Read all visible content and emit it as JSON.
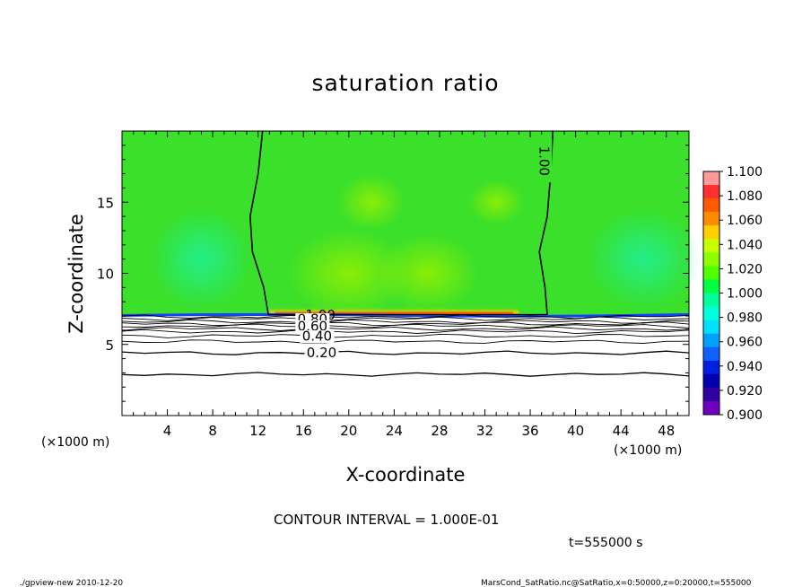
{
  "chart_data": {
    "type": "heatmap",
    "title": "saturation ratio",
    "xlabel": "X-coordinate",
    "ylabel": "Z-coordinate",
    "x_unit_left": "(×1000 m)",
    "x_unit_right": "(×1000 m)",
    "xlim": [
      0,
      50
    ],
    "ylim": [
      0,
      20
    ],
    "xticks": [
      "4",
      "8",
      "12",
      "16",
      "20",
      "24",
      "28",
      "32",
      "36",
      "40",
      "44",
      "48"
    ],
    "yticks": [
      "5",
      "10",
      "15"
    ],
    "xtick_values": [
      4,
      8,
      12,
      16,
      20,
      24,
      28,
      32,
      36,
      40,
      44,
      48
    ],
    "ytick_values": [
      5,
      10,
      15
    ],
    "colorbar": {
      "labels": [
        "1.100",
        "1.080",
        "1.060",
        "1.040",
        "1.020",
        "1.000",
        "0.980",
        "0.960",
        "0.940",
        "0.920",
        "0.900"
      ],
      "colors": [
        "#ff9a9a",
        "#ff3030",
        "#ff5a00",
        "#ff8c00",
        "#ffd000",
        "#c8ff00",
        "#8cff00",
        "#50ff00",
        "#00ff40",
        "#00ff99",
        "#00ffdd",
        "#00e0ff",
        "#00a0ff",
        "#1060ff",
        "#0020e0",
        "#0000b0",
        "#3000a0",
        "#7000c0"
      ]
    },
    "contour_interval": "CONTOUR INTERVAL = 1.000E-01",
    "contour_labels": [
      "1.00",
      "1.00",
      "0.80",
      "0.60",
      "0.40",
      "0.20"
    ],
    "time_label": "t=555000  s",
    "fields": {
      "interface_height_km": 7.1,
      "contour_1_left_x": [
        12.9,
        12.5,
        11.5,
        11.3,
        12.0,
        12.4
      ],
      "contour_1_right_x": [
        37.5,
        37.3,
        36.8,
        37.5,
        37.8,
        38.0
      ],
      "contour_z": [
        7.1,
        9.0,
        11.5,
        14.0,
        17.0,
        20.0
      ],
      "saturation_levels": [
        {
          "z": 6.8,
          "label": "0.80"
        },
        {
          "z": 6.3,
          "label": "0.60"
        },
        {
          "z": 5.6,
          "label": "0.40"
        },
        {
          "z": 4.4,
          "label": "0.20"
        }
      ]
    }
  },
  "footer": {
    "left": "./gpview-new   2010-12-20",
    "right": "MarsCond_SatRatio.nc@SatRatio,x=0:50000,z=0:20000,t=555000"
  }
}
